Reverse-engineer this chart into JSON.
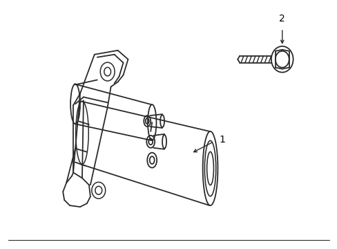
{
  "bg_color": "#ffffff",
  "line_color": "#2a2a2a",
  "line_width": 1.3,
  "label_color": "#000000",
  "label1": "1",
  "label2": "2",
  "figsize": [
    4.89,
    3.6
  ],
  "dpi": 100
}
